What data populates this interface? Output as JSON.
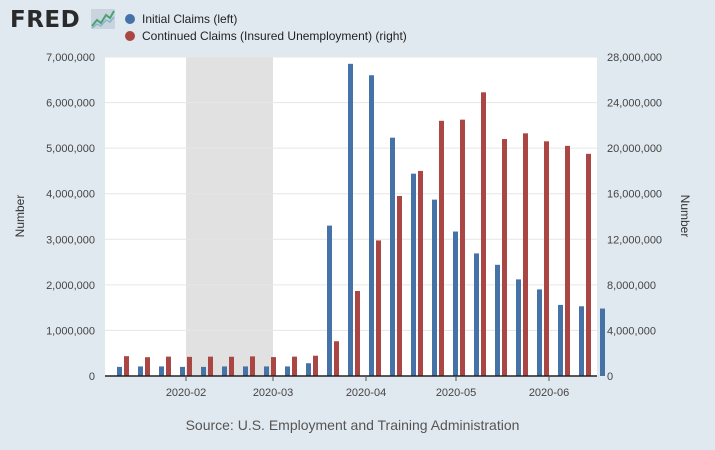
{
  "header": {
    "logo_text": "FRED",
    "logo_icon": "line-chart-icon"
  },
  "legend": [
    {
      "label": "Initial Claims (left)",
      "color": "#4572a7"
    },
    {
      "label": "Continued Claims (Insured Unemployment) (right)",
      "color": "#aa4643"
    }
  ],
  "source": "Source: U.S. Employment and Training Administration",
  "chart_data": {
    "type": "bar",
    "x_tick_labels": [
      "2020-02",
      "2020-03",
      "2020-04",
      "2020-05",
      "2020-06"
    ],
    "ylabel_left": "Number",
    "ylabel_right": "Number",
    "ylim_left": [
      0,
      7000000
    ],
    "ylim_right": [
      0,
      28000000
    ],
    "y_ticks_left": [
      "0",
      "1,000,000",
      "2,000,000",
      "3,000,000",
      "4,000,000",
      "5,000,000",
      "6,000,000",
      "7,000,000"
    ],
    "y_ticks_right": [
      "0",
      "4,000,000",
      "8,000,000",
      "12,000,000",
      "16,000,000",
      "20,000,000",
      "24,000,000",
      "28,000,000"
    ],
    "grid": true,
    "recession_shading": {
      "start": "2020-02-01",
      "end": "2020-03-01"
    },
    "x": [
      "2020-01-11",
      "2020-01-18",
      "2020-01-25",
      "2020-02-01",
      "2020-02-08",
      "2020-02-15",
      "2020-02-22",
      "2020-02-29",
      "2020-03-07",
      "2020-03-14",
      "2020-03-21",
      "2020-03-28",
      "2020-04-04",
      "2020-04-11",
      "2020-04-18",
      "2020-04-25",
      "2020-05-02",
      "2020-05-09",
      "2020-05-16",
      "2020-05-23",
      "2020-05-30",
      "2020-06-06",
      "2020-06-13",
      "2020-06-20"
    ],
    "series": [
      {
        "name": "Initial Claims (left)",
        "axis": "left",
        "color": "#4572a7",
        "values": [
          200000,
          210000,
          210000,
          200000,
          200000,
          210000,
          210000,
          210000,
          210000,
          280000,
          3300000,
          6850000,
          6600000,
          5230000,
          4440000,
          3870000,
          3170000,
          2690000,
          2440000,
          2120000,
          1900000,
          1560000,
          1530000,
          1480000
        ]
      },
      {
        "name": "Continued Claims (Insured Unemployment) (right)",
        "axis": "right",
        "color": "#aa4643",
        "values": [
          1740000,
          1650000,
          1700000,
          1680000,
          1700000,
          1690000,
          1720000,
          1660000,
          1700000,
          1780000,
          3050000,
          7460000,
          11900000,
          15800000,
          18000000,
          22400000,
          22500000,
          24900000,
          20800000,
          21300000,
          20600000,
          20200000,
          19500000,
          null
        ]
      }
    ]
  }
}
